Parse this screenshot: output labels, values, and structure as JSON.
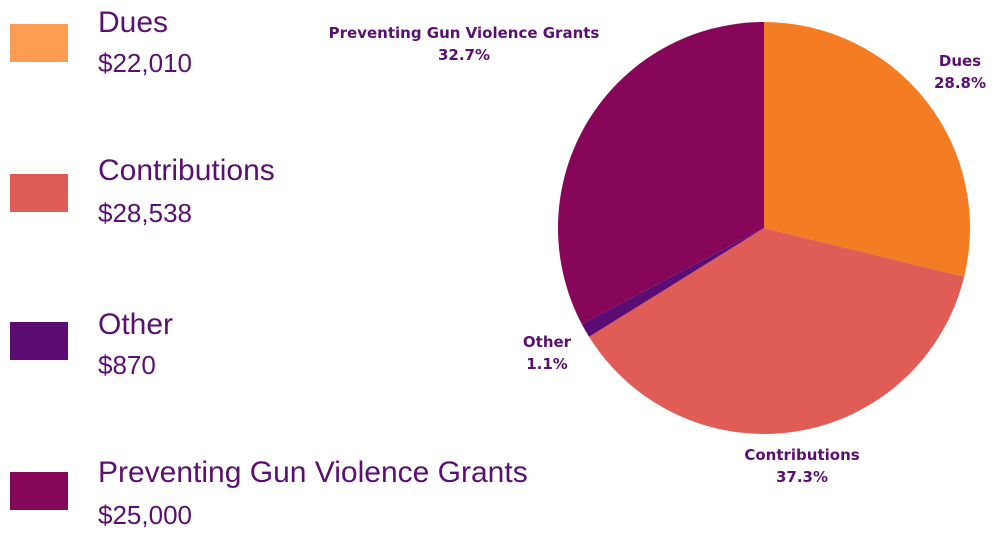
{
  "chart_data": {
    "type": "pie",
    "title": "",
    "slices": [
      {
        "name": "Dues",
        "value": 22010,
        "value_label": "$22,010",
        "percent_label": "28.8%",
        "color": "#f47c22",
        "swatch_color": "#fc9b52"
      },
      {
        "name": "Contributions",
        "value": 28538,
        "value_label": "$28,538",
        "percent_label": "37.3%",
        "color": "#e05d57",
        "swatch_color": "#e05d57"
      },
      {
        "name": "Other",
        "value": 870,
        "value_label": "$870",
        "percent_label": "1.1%",
        "color": "#5b0d73",
        "swatch_color": "#5b0d73"
      },
      {
        "name": "Preventing Gun Violence Grants",
        "value": 25000,
        "value_label": "$25,000",
        "percent_label": "32.7%",
        "color": "#86065a",
        "swatch_color": "#86065a"
      }
    ],
    "legend_placement": "left"
  }
}
